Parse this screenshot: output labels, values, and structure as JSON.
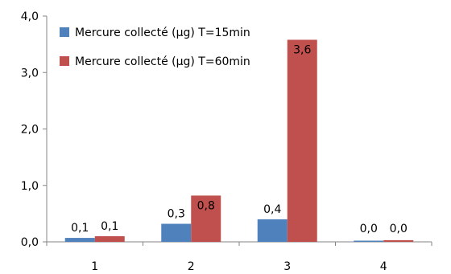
{
  "chart_data": {
    "type": "bar",
    "categories": [
      "1",
      "2",
      "3",
      "4"
    ],
    "series": [
      {
        "name": "Mercure collecté (µg) T=15min",
        "values": [
          0.07,
          0.32,
          0.4,
          0.01
        ],
        "labels": [
          "0,1",
          "0,3",
          "0,4",
          "0,0"
        ],
        "color": "#4F81BD"
      },
      {
        "name": "Mercure collecté (µg) T=60min",
        "values": [
          0.1,
          0.82,
          3.58,
          0.03
        ],
        "labels": [
          "0,1",
          "0,8",
          "3,6",
          "0,0"
        ],
        "color": "#C0504D"
      }
    ],
    "ylim": [
      0,
      4
    ],
    "yticks": [
      0,
      1,
      2,
      3,
      4
    ],
    "ytick_labels": [
      "0,0",
      "1,0",
      "2,0",
      "3,0",
      "4,0"
    ],
    "grid": false,
    "legend_position": "top-left"
  }
}
